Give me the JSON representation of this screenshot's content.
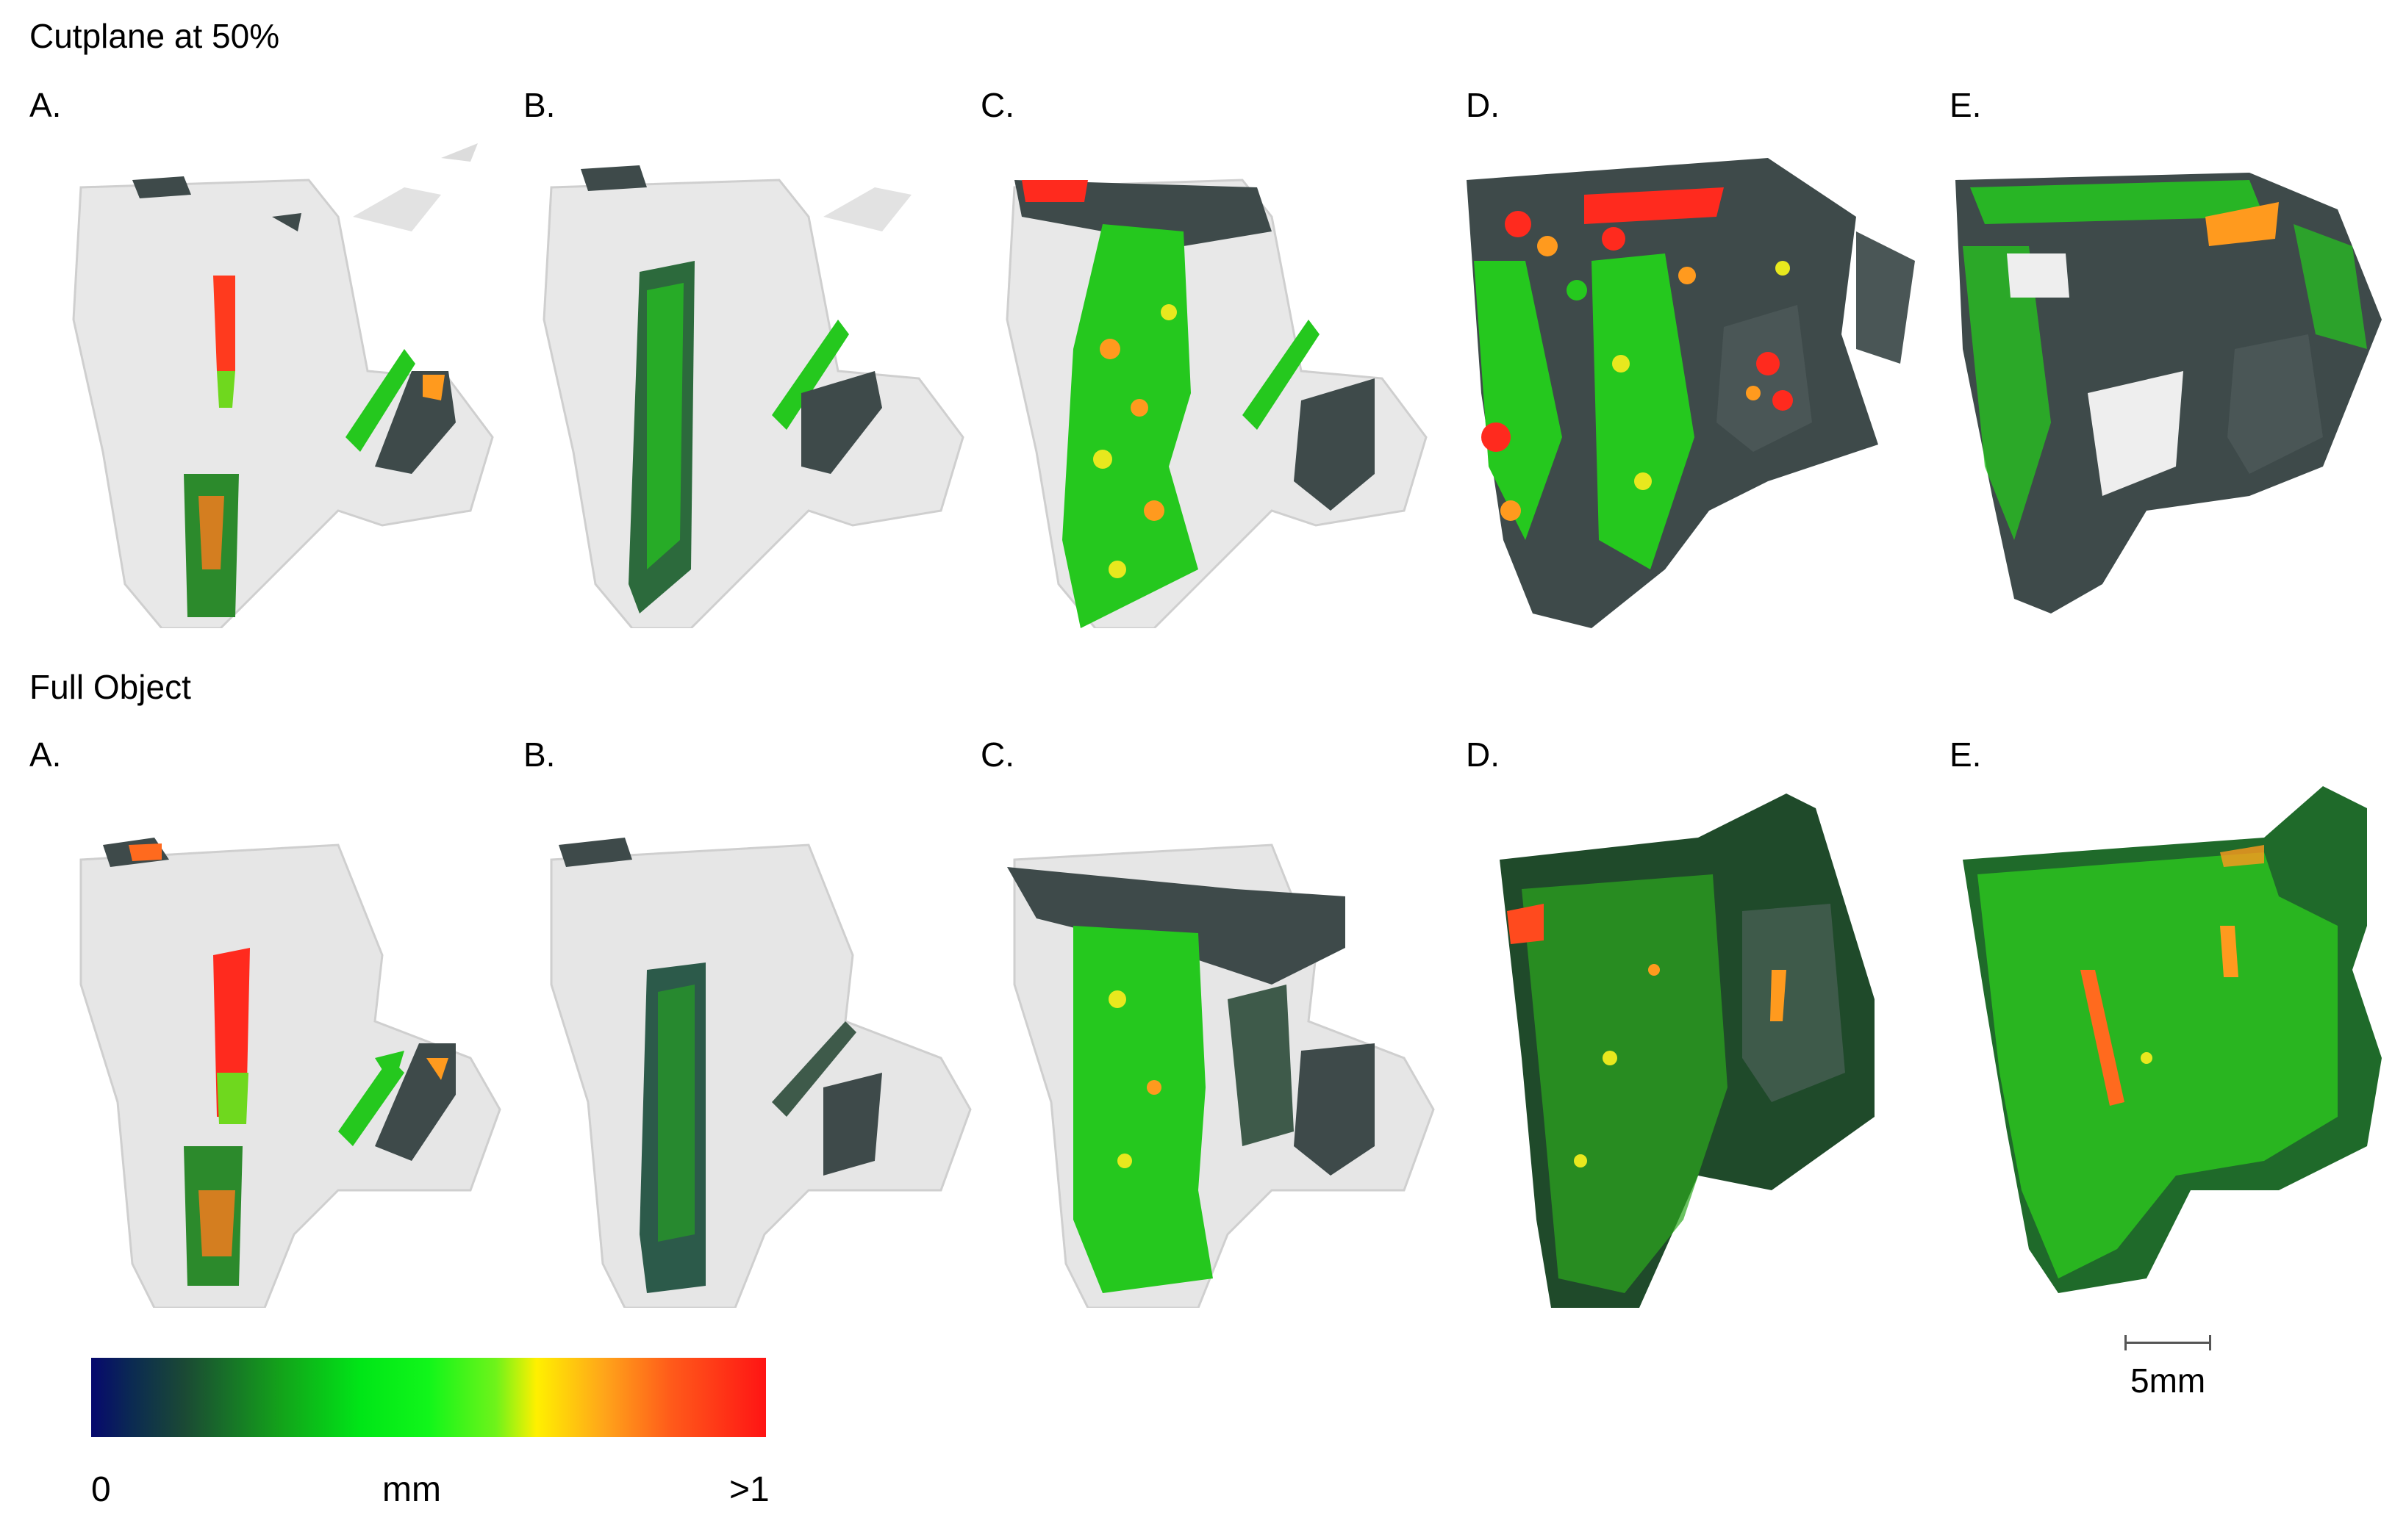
{
  "rows": [
    {
      "title": "Cutplane at 50%",
      "labels": [
        "A.",
        "B.",
        "C.",
        "D.",
        "E."
      ]
    },
    {
      "title": "Full Object",
      "labels": [
        "A.",
        "B.",
        "C.",
        "D.",
        "E."
      ]
    }
  ],
  "colorbar": {
    "min_label": "0",
    "unit_label": "mm",
    "max_label": ">1"
  },
  "scalebar": {
    "label": "5mm"
  },
  "colors": {
    "bone_gray": "#e6e6e6",
    "dark_slate": "#3e4a4a",
    "green": "#25c81e",
    "bright_green": "#3af52a",
    "yellow": "#e8e81e",
    "orange": "#ff9a1e",
    "red": "#ff2a1e"
  }
}
